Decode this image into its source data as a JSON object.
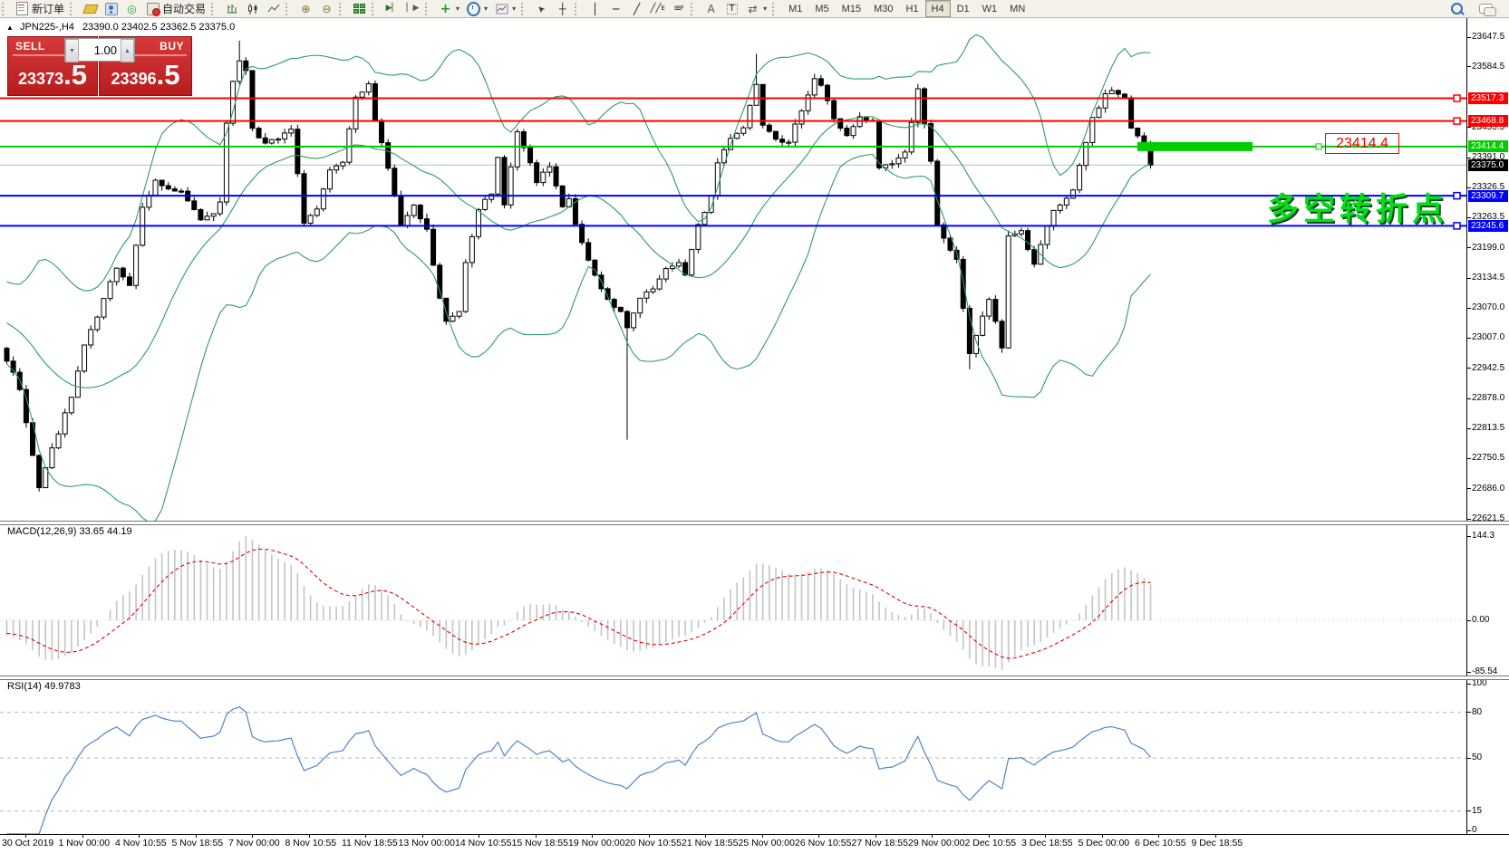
{
  "toolbar": {
    "new_order_label": "新订单",
    "autotrade_label": "自动交易",
    "timeframes": [
      "M1",
      "M5",
      "M15",
      "M30",
      "H1",
      "H4",
      "D1",
      "W1",
      "MN"
    ],
    "active_timeframe": "H4"
  },
  "chart_header": {
    "marker": "▲",
    "symbol_period": "JPN225-,H4",
    "ohlc": "23390.0 23402.5 23362.5 23375.0"
  },
  "trade_panel": {
    "sell_label": "SELL",
    "buy_label": "BUY",
    "volume": "1.00",
    "sell_price_int": "23373",
    "sell_price_frac": ".5",
    "buy_price_int": "23396",
    "buy_price_frac": ".5",
    "spin_down": "▼",
    "spin_up": "▲"
  },
  "indicators": {
    "macd_label": "MACD(12,26,9) 33.65 44.19",
    "rsi_label": "RSI(14) 49.9783"
  },
  "annotations": {
    "price_tag": "23414.4",
    "cn_note": "多空转折点"
  },
  "chart_data": {
    "type": "candlestick",
    "symbol": "JPN225-",
    "timeframe": "H4",
    "ylim": [
      22621.5,
      23647.5
    ],
    "bars": 178,
    "y_ticks": [
      "23647.5",
      "23584.5",
      "23455.5",
      "23391.0",
      "23326.5",
      "23263.5",
      "23199.0",
      "23134.5",
      "23070.0",
      "23007.0",
      "22942.5",
      "22878.0",
      "22813.5",
      "22750.5",
      "22686.0",
      "22621.5"
    ],
    "time_labels": [
      "30 Oct 2019",
      "1 Nov 00:00",
      "4 Nov 10:55",
      "5 Nov 18:55",
      "7 Nov 00:00",
      "8 Nov 10:55",
      "11 Nov 18:55",
      "13 Nov 00:00",
      "14 Nov 10:55",
      "15 Nov 18:55",
      "19 Nov 00:00",
      "20 Nov 10:55",
      "21 Nov 18:55",
      "25 Nov 00:00",
      "26 Nov 10:55",
      "27 Nov 18:55",
      "29 Nov 00:00",
      "2 Dec 10:55",
      "3 Dec 18:55",
      "5 Dec 00:00",
      "6 Dec 10:55",
      "9 Dec 18:55"
    ],
    "history_anchors": [
      [
        -20,
        23120
      ],
      [
        -10,
        23040
      ],
      [
        -1,
        22980
      ]
    ],
    "close_anchors": [
      [
        0,
        22960
      ],
      [
        2,
        22900
      ],
      [
        4,
        22760
      ],
      [
        5,
        22690
      ],
      [
        7,
        22770
      ],
      [
        10,
        22880
      ],
      [
        12,
        22990
      ],
      [
        14,
        23050
      ],
      [
        17,
        23160
      ],
      [
        19,
        23120
      ],
      [
        21,
        23290
      ],
      [
        23,
        23340
      ],
      [
        25,
        23325
      ],
      [
        27,
        23315
      ],
      [
        30,
        23260
      ],
      [
        32,
        23275
      ],
      [
        33,
        23300
      ],
      [
        34,
        23460
      ],
      [
        35,
        23555
      ],
      [
        36,
        23600
      ],
      [
        37,
        23575
      ],
      [
        38,
        23455
      ],
      [
        40,
        23420
      ],
      [
        42,
        23430
      ],
      [
        44,
        23450
      ],
      [
        46,
        23255
      ],
      [
        48,
        23280
      ],
      [
        50,
        23360
      ],
      [
        52,
        23380
      ],
      [
        54,
        23515
      ],
      [
        56,
        23545
      ],
      [
        57,
        23475
      ],
      [
        59,
        23370
      ],
      [
        61,
        23245
      ],
      [
        63,
        23285
      ],
      [
        65,
        23235
      ],
      [
        67,
        23090
      ],
      [
        68,
        23040
      ],
      [
        70,
        23065
      ],
      [
        71,
        23170
      ],
      [
        73,
        23285
      ],
      [
        75,
        23310
      ],
      [
        76,
        23390
      ],
      [
        77,
        23295
      ],
      [
        79,
        23445
      ],
      [
        80,
        23410
      ],
      [
        82,
        23340
      ],
      [
        84,
        23370
      ],
      [
        86,
        23285
      ],
      [
        87,
        23300
      ],
      [
        89,
        23205
      ],
      [
        91,
        23140
      ],
      [
        93,
        23090
      ],
      [
        95,
        23060
      ],
      [
        96,
        23025
      ],
      [
        98,
        23090
      ],
      [
        100,
        23110
      ],
      [
        102,
        23150
      ],
      [
        104,
        23170
      ],
      [
        105,
        23140
      ],
      [
        107,
        23245
      ],
      [
        109,
        23310
      ],
      [
        110,
        23380
      ],
      [
        112,
        23435
      ],
      [
        114,
        23455
      ],
      [
        116,
        23550
      ],
      [
        117,
        23465
      ],
      [
        119,
        23435
      ],
      [
        121,
        23420
      ],
      [
        123,
        23495
      ],
      [
        125,
        23560
      ],
      [
        126,
        23545
      ],
      [
        128,
        23475
      ],
      [
        130,
        23435
      ],
      [
        132,
        23475
      ],
      [
        134,
        23465
      ],
      [
        135,
        23370
      ],
      [
        137,
        23380
      ],
      [
        139,
        23400
      ],
      [
        141,
        23540
      ],
      [
        143,
        23380
      ],
      [
        144,
        23245
      ],
      [
        146,
        23195
      ],
      [
        147,
        23170
      ],
      [
        149,
        22975
      ],
      [
        151,
        23050
      ],
      [
        152,
        23090
      ],
      [
        154,
        22985
      ],
      [
        155,
        23225
      ],
      [
        157,
        23235
      ],
      [
        159,
        23160
      ],
      [
        160,
        23205
      ],
      [
        162,
        23275
      ],
      [
        165,
        23320
      ],
      [
        166,
        23370
      ],
      [
        168,
        23475
      ],
      [
        170,
        23525
      ],
      [
        171,
        23535
      ],
      [
        173,
        23515
      ],
      [
        174,
        23455
      ],
      [
        176,
        23420
      ],
      [
        177,
        23375
      ]
    ],
    "wick_overrides": [
      {
        "i": 36,
        "high": 23640
      },
      {
        "i": 96,
        "low": 22790
      },
      {
        "i": 116,
        "high": 23612
      },
      {
        "i": 149,
        "low": 22940
      }
    ],
    "bollinger": {
      "period": 20,
      "deviation": 2,
      "color": "#2e9e5e"
    },
    "macd": {
      "fast": 12,
      "slow": 26,
      "signal": 9,
      "value": 33.65,
      "signal_value": 44.19,
      "hist_color": "#c4c4c4",
      "signal_color": "#e00000",
      "axis_ticks": [
        {
          "v": 144.3,
          "label": "144.3"
        },
        {
          "v": 0,
          "label": "0.00"
        },
        {
          "v": -85.54,
          "label": "-85.54"
        }
      ]
    },
    "rsi": {
      "period": 14,
      "value": 49.9783,
      "color": "#4f86c6",
      "levels": [
        80,
        50,
        15
      ],
      "axis_ticks": [
        {
          "v": 100,
          "label": "100"
        },
        {
          "v": 80,
          "label": "80"
        },
        {
          "v": 50,
          "label": "50"
        },
        {
          "v": 15,
          "label": "15"
        },
        {
          "v": 0,
          "label": "0"
        }
      ]
    },
    "lines": [
      {
        "price": 23517.3,
        "color": "#ff0000",
        "label": "23517.3",
        "kind": "hline",
        "width": 2
      },
      {
        "price": 23468.8,
        "color": "#ff0000",
        "label": "23468.8",
        "kind": "hline",
        "width": 2
      },
      {
        "price": 23414.4,
        "color": "#00cc00",
        "label": "23414.4",
        "kind": "hline",
        "width": 2,
        "thick_segment": [
          1255,
          1382
        ]
      },
      {
        "price": 23375.0,
        "color": "#bcbcbc",
        "label": "23375.0",
        "kind": "bid",
        "width": 1,
        "badge_bg": "#000000"
      },
      {
        "price": 23309.7,
        "color": "#0000ff",
        "label": "23309.7",
        "kind": "hline",
        "width": 2
      },
      {
        "price": 23245.6,
        "color": "#0000ff",
        "label": "23245.6",
        "kind": "hline",
        "width": 2
      }
    ]
  }
}
